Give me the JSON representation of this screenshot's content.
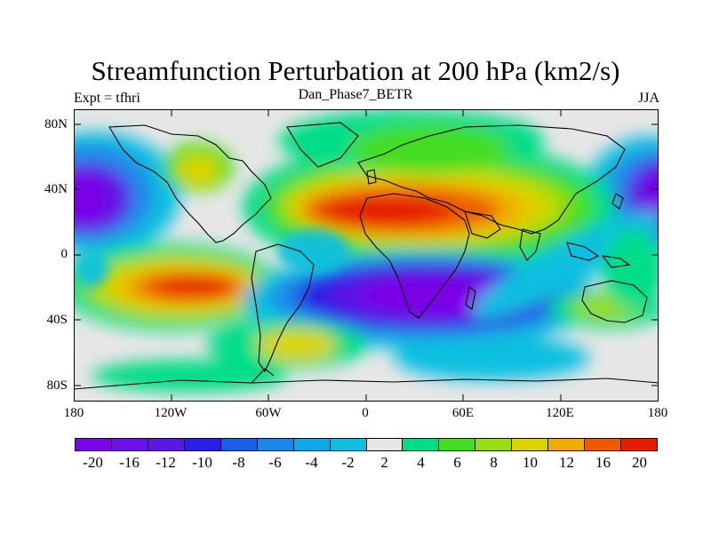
{
  "title": "Streamfunction Perturbation at 200 hPa (km2/s)",
  "left_subtitle": "Expt = tfhri",
  "center_subtitle": "Dan_Phase7_BETR",
  "right_subtitle": "JJA",
  "lat_labels": [
    "80N",
    "40N",
    "0",
    "40S",
    "80S"
  ],
  "lon_labels": [
    "180",
    "120W",
    "60W",
    "0",
    "60E",
    "120E",
    "180"
  ],
  "colorbar": {
    "colors": [
      "#7b06e6",
      "#6c10e8",
      "#5a18e4",
      "#2c1ee4",
      "#1a5fe8",
      "#1a88ea",
      "#10a8e8",
      "#10bfe0",
      "#e6e6e6",
      "#00dd88",
      "#44dd22",
      "#99dd11",
      "#dcd400",
      "#f0ad00",
      "#ee5a00",
      "#e51e00"
    ],
    "labels": [
      "-20",
      "-16",
      "-12",
      "-10",
      "-8",
      "-6",
      "-4",
      "-2",
      "2",
      "4",
      "6",
      "8",
      "10",
      "12",
      "16",
      "20"
    ]
  }
}
